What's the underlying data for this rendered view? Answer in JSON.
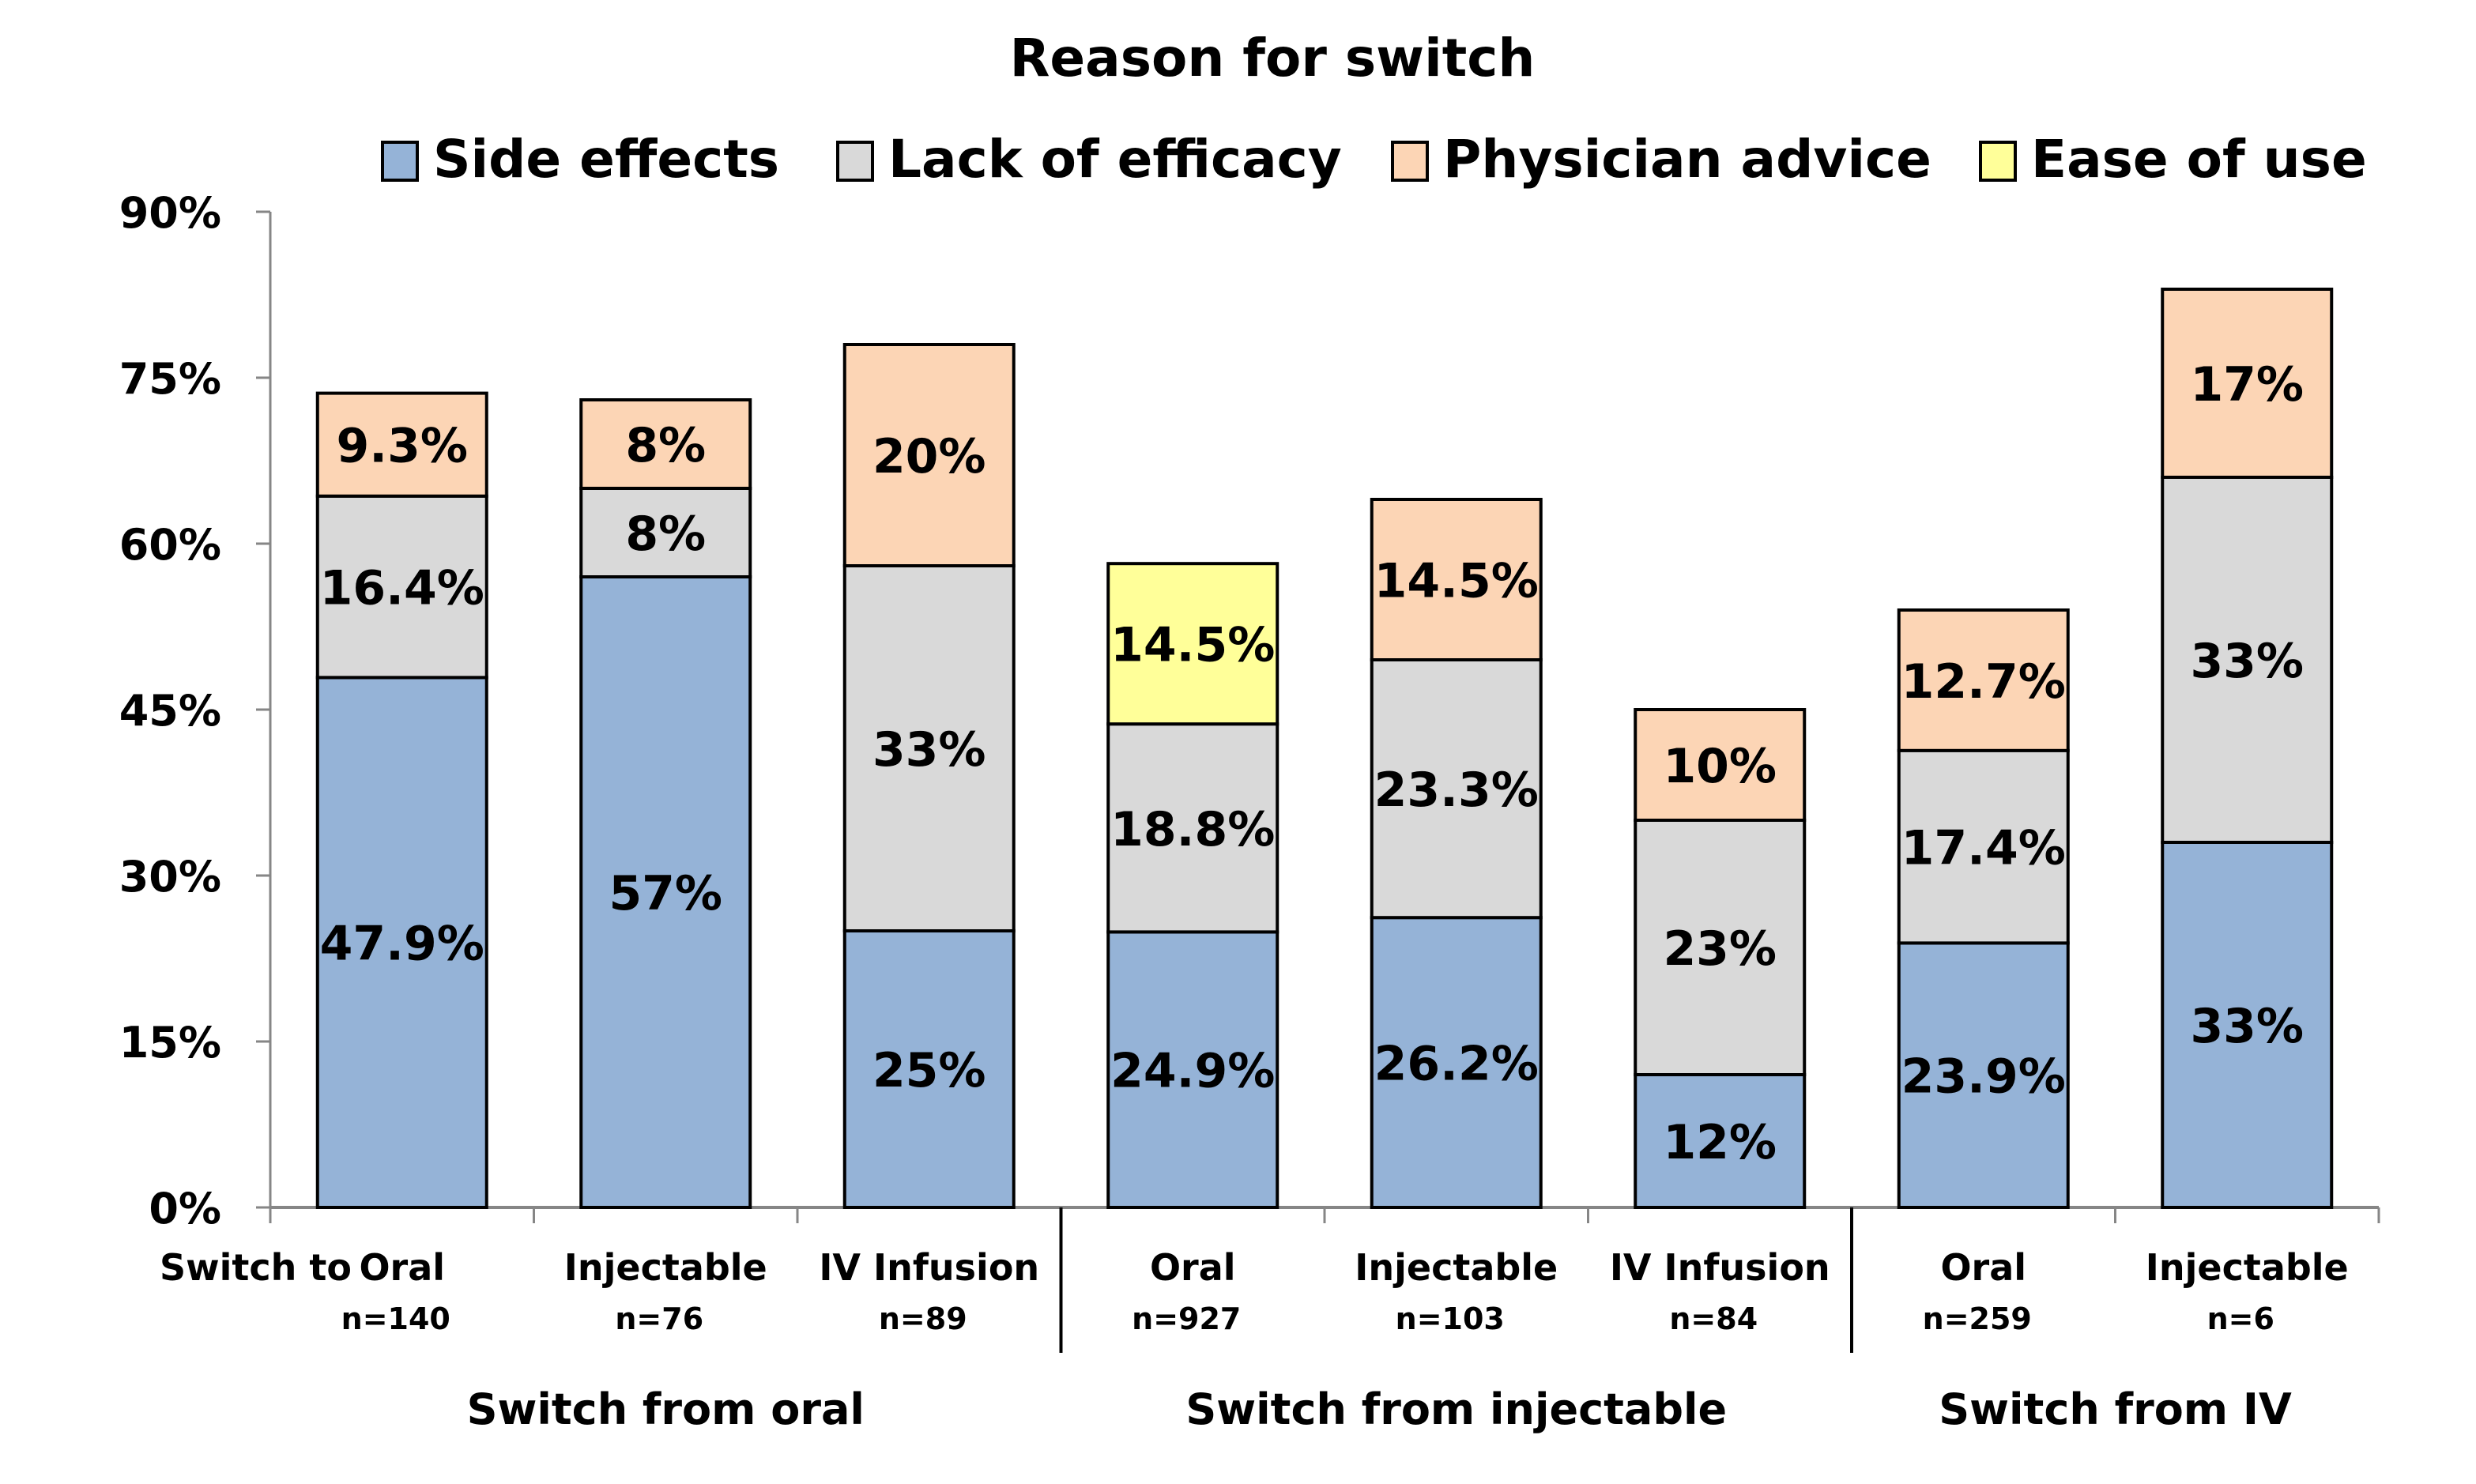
{
  "chart_data": {
    "type": "bar",
    "stacked": true,
    "title": "Reason for switch",
    "xlabel": "",
    "ylabel": "",
    "ylim": [
      0,
      90
    ],
    "yticks": [
      0,
      15,
      30,
      45,
      60,
      75,
      90
    ],
    "ytick_labels": [
      "0%",
      "15%",
      "30%",
      "45%",
      "60%",
      "75%",
      "90%"
    ],
    "grid": false,
    "legend_position": "top",
    "categories": [
      "Oral",
      "Injectable",
      "IV Infusion",
      "Oral",
      "Injectable",
      "IV Infusion",
      "Oral",
      "Injectable"
    ],
    "category_prefix": "Switch to",
    "sample_sizes": [
      "n=140",
      "n=76",
      "n=89",
      "n=927",
      "n=103",
      "n=84",
      "n=259",
      "n=6"
    ],
    "groups": [
      {
        "label": "Switch from oral",
        "start": 0,
        "count": 3
      },
      {
        "label": "Switch from injectable",
        "start": 3,
        "count": 3
      },
      {
        "label": "Switch from IV",
        "start": 6,
        "count": 2
      }
    ],
    "series": [
      {
        "name": "Side effects",
        "color": "#95b3d7",
        "values": [
          47.9,
          57,
          25,
          24.9,
          26.2,
          12,
          23.9,
          33
        ],
        "labels": [
          "47.9%",
          "57%",
          "25%",
          "24.9%",
          "26.2%",
          "12%",
          "23.9%",
          "33%"
        ]
      },
      {
        "name": "Lack of efficacy",
        "color": "#d9d9d9",
        "values": [
          16.4,
          8,
          33,
          18.8,
          23.3,
          23,
          17.4,
          33
        ],
        "labels": [
          "16.4%",
          "8%",
          "33%",
          "18.8%",
          "23.3%",
          "23%",
          "17.4%",
          "33%"
        ]
      },
      {
        "name": "Physician advice",
        "color": "#fcd5b5",
        "values": [
          9.3,
          8,
          20,
          null,
          14.5,
          10,
          12.7,
          17
        ],
        "labels": [
          "9.3%",
          "8%",
          "20%",
          "",
          "14.5%",
          "10%",
          "12.7%",
          "17%"
        ]
      },
      {
        "name": "Ease of use",
        "color": "#ffff99",
        "values": [
          null,
          null,
          null,
          14.5,
          null,
          null,
          null,
          null
        ],
        "labels": [
          "",
          "",
          "",
          "14.5%",
          "",
          "",
          "",
          ""
        ]
      }
    ]
  }
}
